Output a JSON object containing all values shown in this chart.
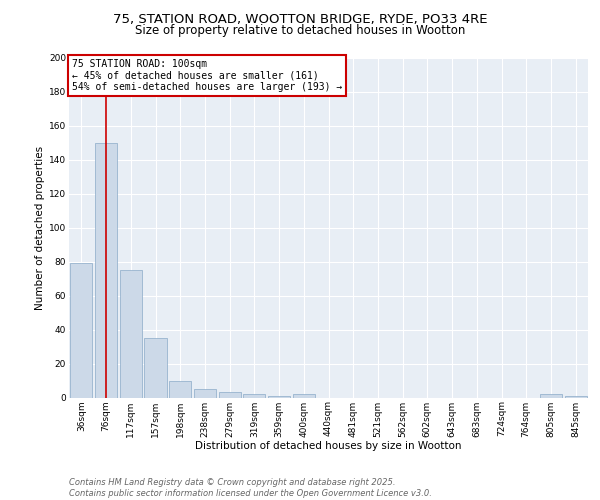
{
  "title": "75, STATION ROAD, WOOTTON BRIDGE, RYDE, PO33 4RE",
  "subtitle": "Size of property relative to detached houses in Wootton",
  "xlabel": "Distribution of detached houses by size in Wootton",
  "ylabel": "Number of detached properties",
  "bar_labels": [
    "36sqm",
    "76sqm",
    "117sqm",
    "157sqm",
    "198sqm",
    "238sqm",
    "279sqm",
    "319sqm",
    "359sqm",
    "400sqm",
    "440sqm",
    "481sqm",
    "521sqm",
    "562sqm",
    "602sqm",
    "643sqm",
    "683sqm",
    "724sqm",
    "764sqm",
    "805sqm",
    "845sqm"
  ],
  "bar_values": [
    79,
    150,
    75,
    35,
    10,
    5,
    3,
    2,
    1,
    2,
    0,
    0,
    0,
    0,
    0,
    0,
    0,
    0,
    0,
    2,
    1
  ],
  "bar_color": "#ccd9e8",
  "bar_edge_color": "#8aaac8",
  "annotation_line1": "75 STATION ROAD: 100sqm",
  "annotation_line2": "← 45% of detached houses are smaller (161)",
  "annotation_line3": "54% of semi-detached houses are larger (193) →",
  "annotation_box_edgecolor": "#cc0000",
  "vline_color": "#cc0000",
  "vline_x": 1.0,
  "ylim": [
    0,
    200
  ],
  "yticks": [
    0,
    20,
    40,
    60,
    80,
    100,
    120,
    140,
    160,
    180,
    200
  ],
  "bg_color": "#e8eef5",
  "grid_color": "#ffffff",
  "footer_text": "Contains HM Land Registry data © Crown copyright and database right 2025.\nContains public sector information licensed under the Open Government Licence v3.0.",
  "title_fontsize": 9.5,
  "subtitle_fontsize": 8.5,
  "xlabel_fontsize": 7.5,
  "ylabel_fontsize": 7.5,
  "tick_fontsize": 6.5,
  "annotation_fontsize": 7,
  "footer_fontsize": 6
}
